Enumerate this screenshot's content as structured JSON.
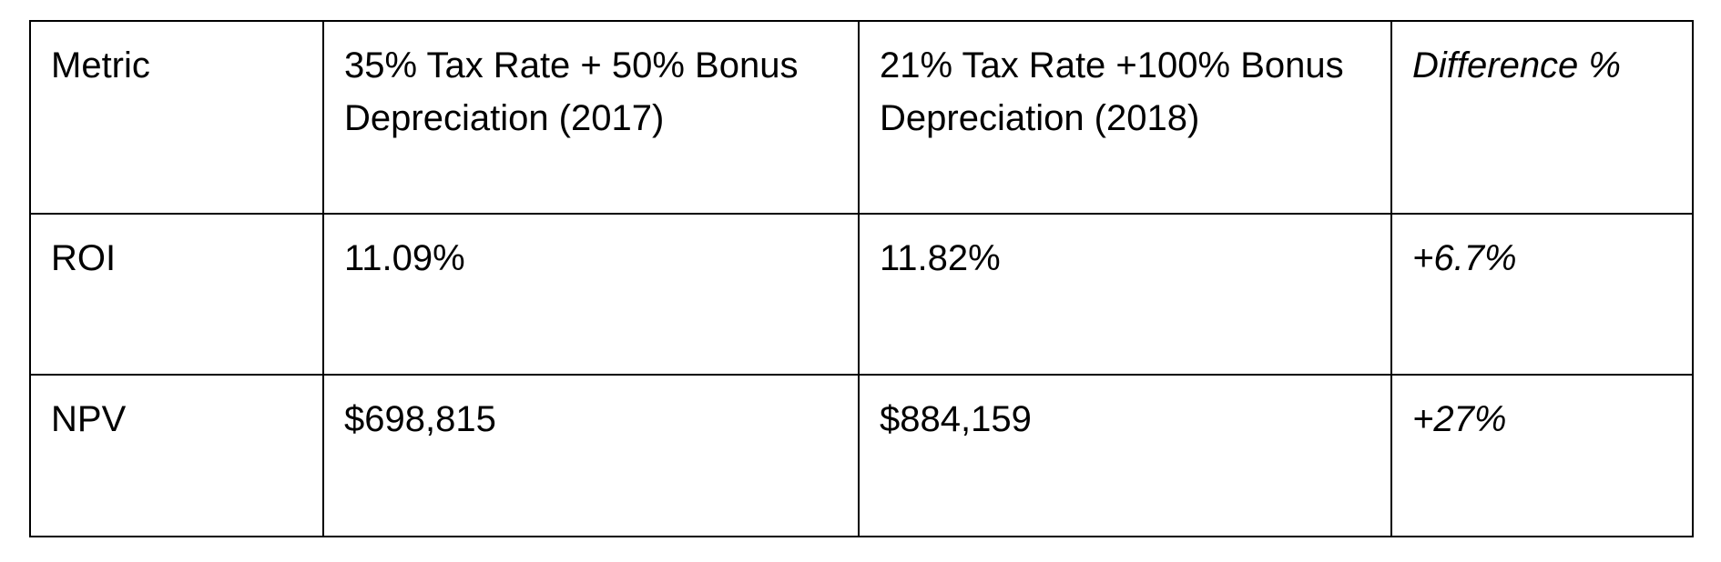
{
  "table": {
    "header": {
      "metric": "Metric",
      "col_2017": "35% Tax Rate + 50% Bonus Depreciation (2017)",
      "col_2018": "21% Tax Rate +100% Bonus Depreciation (2018)",
      "difference": "Difference %"
    },
    "rows": [
      {
        "metric": "ROI",
        "val_2017": "11.09%",
        "val_2018": "11.82%",
        "difference": "+6.7%"
      },
      {
        "metric": "NPV",
        "val_2017": "$698,815",
        "val_2018": "$884,159",
        "difference": "+27%"
      }
    ]
  }
}
